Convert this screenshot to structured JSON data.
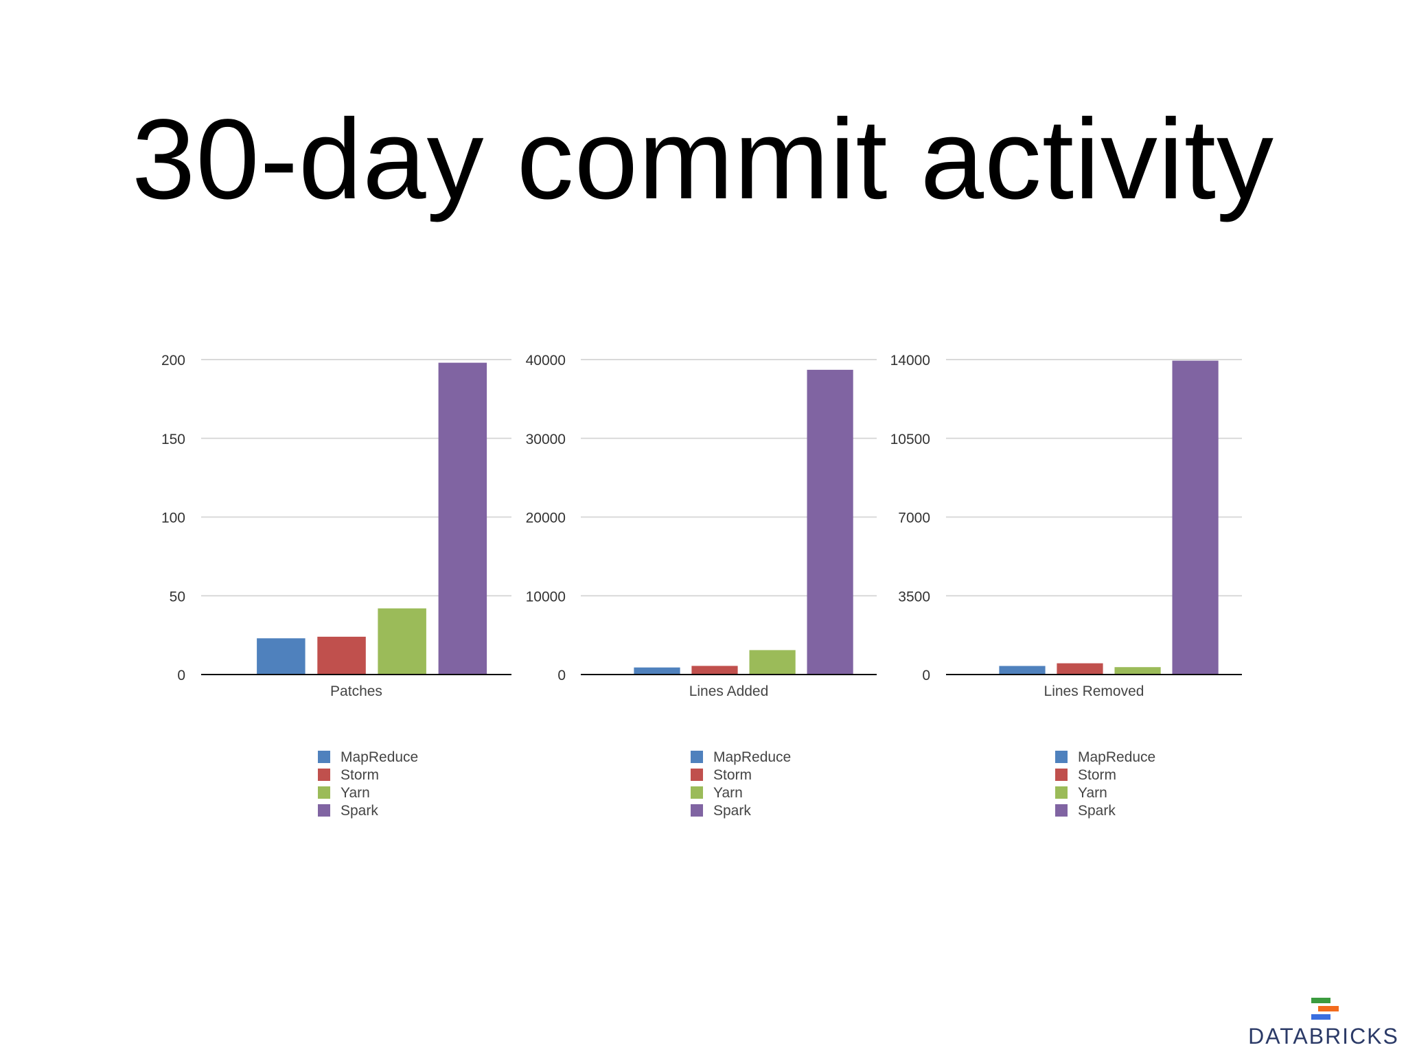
{
  "title": "30-day commit activity",
  "colors": {
    "MapReduce": "#4f81bd",
    "Storm": "#c0504d",
    "Yarn": "#9bbb59",
    "Spark": "#8064a2"
  },
  "chart_data": [
    {
      "type": "bar",
      "category": "Patches",
      "categories": [
        "Patches"
      ],
      "series": [
        {
          "name": "MapReduce",
          "values": [
            23
          ]
        },
        {
          "name": "Storm",
          "values": [
            24
          ]
        },
        {
          "name": "Yarn",
          "values": [
            42
          ]
        },
        {
          "name": "Spark",
          "values": [
            198
          ]
        }
      ],
      "yticks": [
        "0",
        "50",
        "100",
        "150",
        "200"
      ],
      "ylim": [
        0,
        200
      ],
      "legend": [
        "MapReduce",
        "Storm",
        "Yarn",
        "Spark"
      ],
      "legend_position": "bottom"
    },
    {
      "type": "bar",
      "category": "Lines Added",
      "categories": [
        "Lines Added"
      ],
      "series": [
        {
          "name": "MapReduce",
          "values": [
            900
          ]
        },
        {
          "name": "Storm",
          "values": [
            1100
          ]
        },
        {
          "name": "Yarn",
          "values": [
            3100
          ]
        },
        {
          "name": "Spark",
          "values": [
            38700
          ]
        }
      ],
      "yticks": [
        "0",
        "10000",
        "20000",
        "30000",
        "40000"
      ],
      "ylim": [
        0,
        40000
      ],
      "legend": [
        "MapReduce",
        "Storm",
        "Yarn",
        "Spark"
      ],
      "legend_position": "bottom"
    },
    {
      "type": "bar",
      "category": "Lines Removed",
      "categories": [
        "Lines Removed"
      ],
      "series": [
        {
          "name": "MapReduce",
          "values": [
            380
          ]
        },
        {
          "name": "Storm",
          "values": [
            500
          ]
        },
        {
          "name": "Yarn",
          "values": [
            330
          ]
        },
        {
          "name": "Spark",
          "values": [
            13950
          ]
        }
      ],
      "yticks": [
        "0",
        "3500",
        "7000",
        "10500",
        "14000"
      ],
      "ylim": [
        0,
        14000
      ],
      "legend": [
        "MapReduce",
        "Storm",
        "Yarn",
        "Spark"
      ],
      "legend_position": "bottom"
    }
  ],
  "logo": {
    "text": "DATABRICKS",
    "colors": [
      "#3b9b3f",
      "#f26b1d",
      "#3b6fe0"
    ]
  }
}
